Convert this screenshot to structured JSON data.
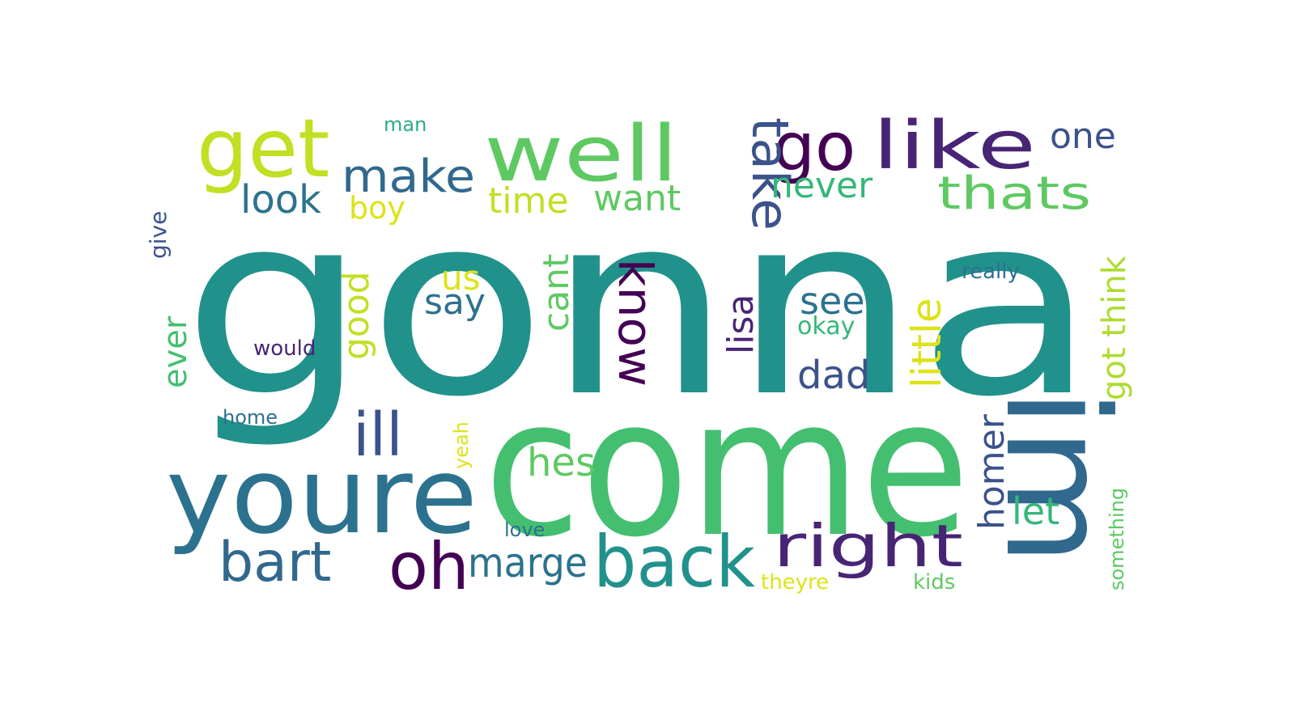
{
  "palette": {
    "teal": "#21918c",
    "green": "#44bf70",
    "deep_blue": "#31688e",
    "blue_teal": "#2c728e",
    "purple": "#482475",
    "dark_purple": "#440154",
    "indigo": "#3b528b",
    "lime": "#addc30",
    "yellow_green": "#c2df23",
    "yellow": "#dde318",
    "light_green": "#5ec962",
    "sea_green": "#35b779",
    "aqua": "#28ae80"
  },
  "words": {
    "gonna": "gonna",
    "come": "come",
    "im": "im",
    "youre": "youre",
    "well": "well",
    "get": "get",
    "go": "go",
    "like": "like",
    "make": "make",
    "take": "take",
    "thats": "thats",
    "one": "one",
    "never": "never",
    "want": "want",
    "time": "time",
    "look": "look",
    "boy": "boy",
    "man": "man",
    "give": "give",
    "ever": "ever",
    "good": "good",
    "us": "us",
    "say": "say",
    "cant": "cant",
    "know": "know",
    "lisa": "lisa",
    "see": "see",
    "okay": "okay",
    "dad": "dad",
    "little": "little",
    "got_think": "got think",
    "really": "really",
    "would": "would",
    "ill": "ill",
    "home": "home",
    "yeah": "yeah",
    "hes": "hes",
    "homer": "homer",
    "let": "let",
    "something": "something",
    "bart": "bart",
    "oh": "oh",
    "marge": "marge",
    "back": "back",
    "right": "right",
    "love": "love",
    "theyre": "theyre",
    "kids": "kids"
  }
}
